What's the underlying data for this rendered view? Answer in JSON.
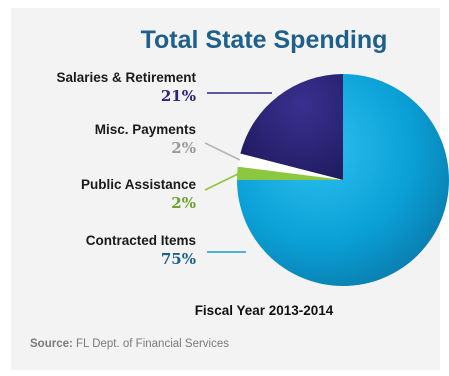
{
  "chart_data": {
    "type": "pie",
    "title": "Total State Spending",
    "subtitle": "Fiscal Year 2013-2014",
    "source_label": "Source:",
    "source_text": " FL Dept. of Financial Services",
    "slices": [
      {
        "label": "Salaries & Retirement",
        "value": 21,
        "display": "21%",
        "color": "#2e2578",
        "label_color": "#2e2578"
      },
      {
        "label": "Misc. Payments",
        "value": 2,
        "display": "2%",
        "color": "#ffffff",
        "label_color": "#9a9a9a"
      },
      {
        "label": "Public Assistance",
        "value": 2,
        "display": "2%",
        "color": "#8dc63f",
        "label_color": "#6aa12e"
      },
      {
        "label": "Contracted Items",
        "value": 75,
        "display": "75%",
        "color": "#0ea3d8",
        "label_color": "#1f5f8c"
      }
    ]
  }
}
